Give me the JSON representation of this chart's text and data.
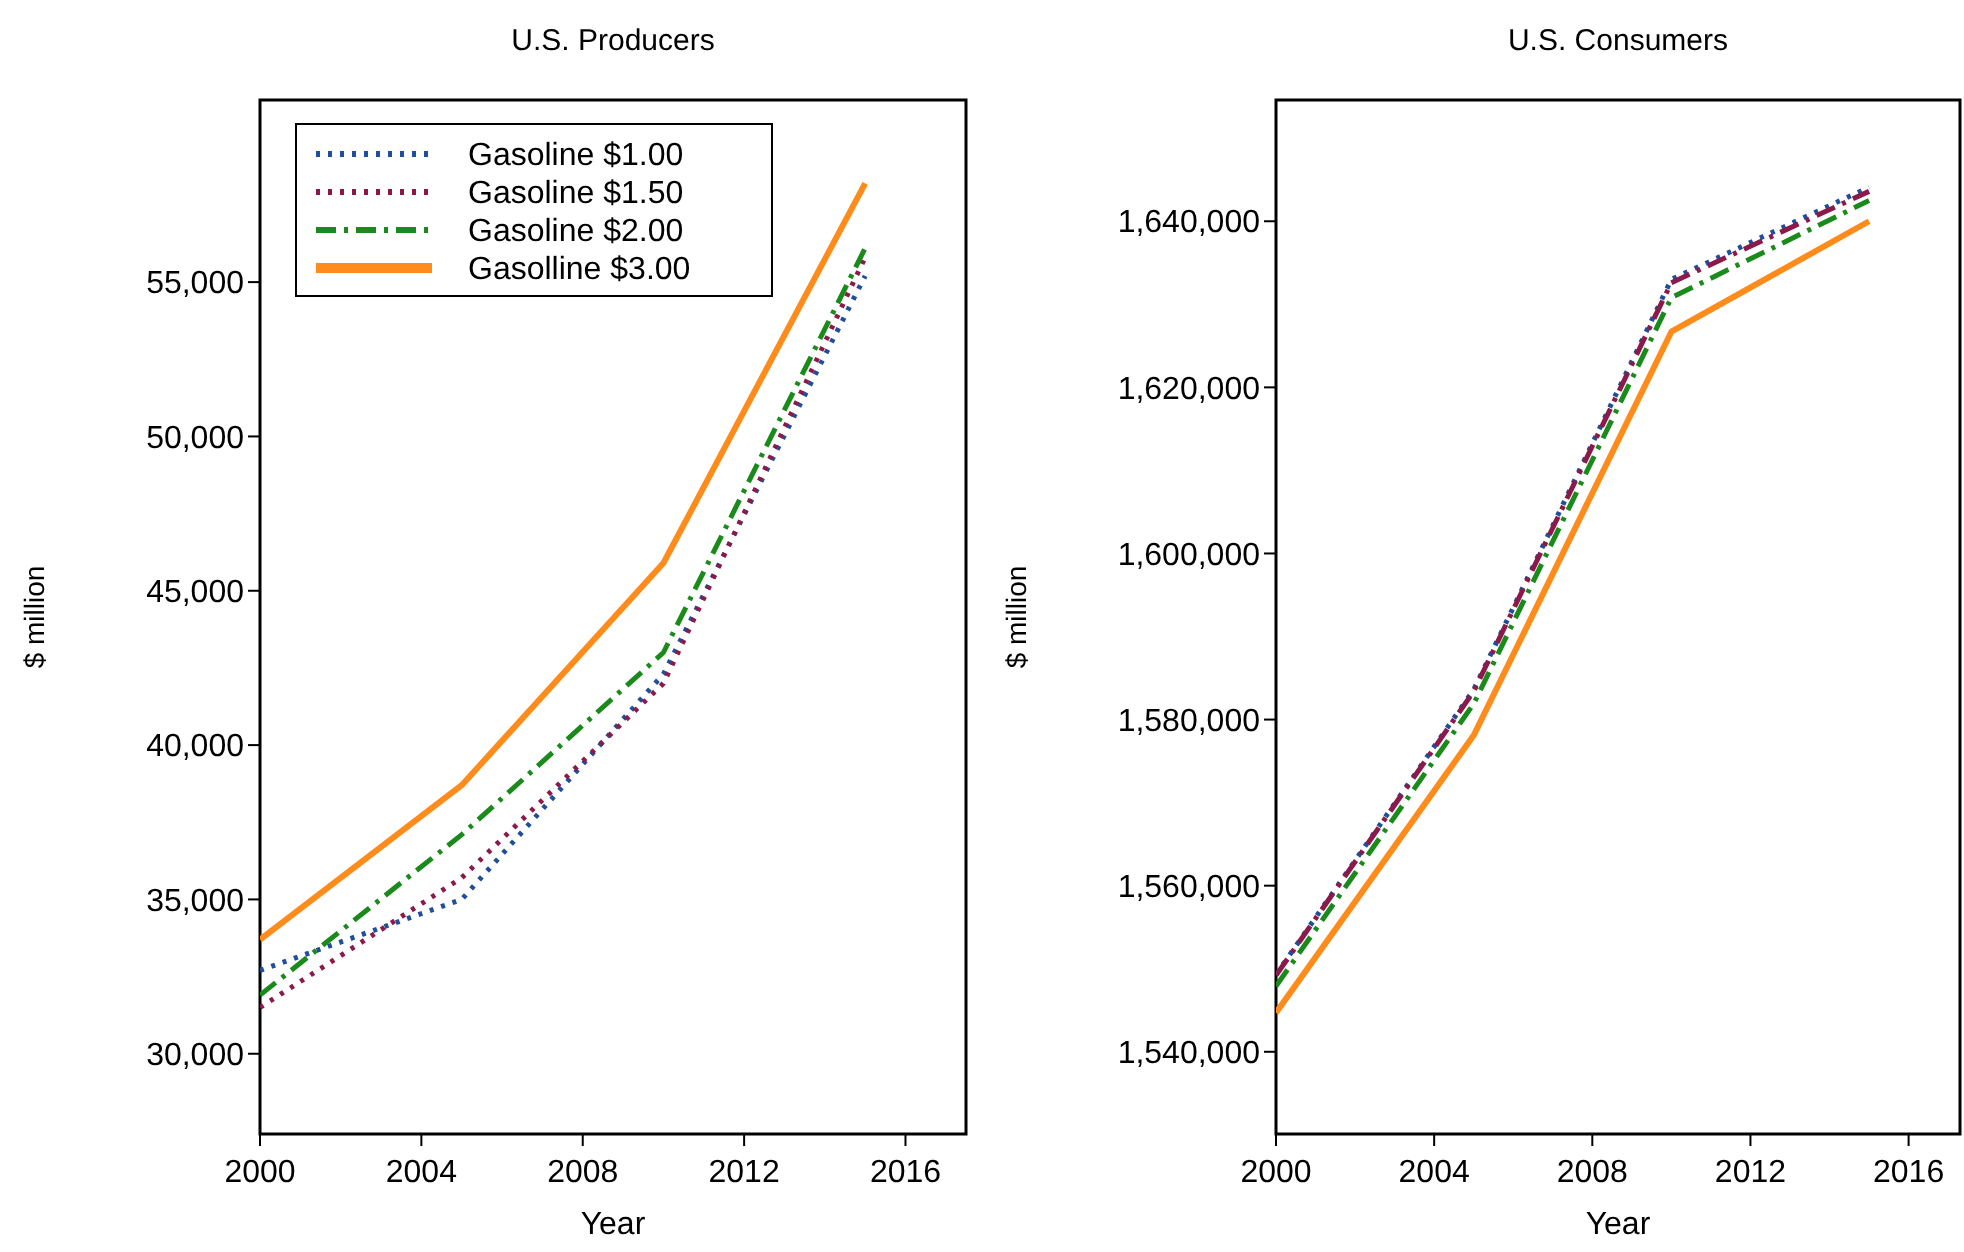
{
  "chart_data": [
    {
      "type": "line",
      "title": "U.S. Producers",
      "xlabel": "Year",
      "ylabel": "$ million",
      "x": [
        2000,
        2005,
        2010,
        2015
      ],
      "xlim": [
        2000,
        2017.5
      ],
      "xticks": [
        2000,
        2004,
        2008,
        2012,
        2016
      ],
      "ylim": [
        27400,
        60900
      ],
      "yticks": [
        {
          "value": 30000,
          "label": "30,000"
        },
        {
          "value": 35000,
          "label": "35,000"
        },
        {
          "value": 40000,
          "label": "40,000"
        },
        {
          "value": 45000,
          "label": "45,000"
        },
        {
          "value": 50000,
          "label": "50,000"
        },
        {
          "value": 55000,
          "label": "55,000"
        }
      ],
      "legend": "top left",
      "series": [
        {
          "name": "Gasoline $1.00",
          "color": "#1f4e9a",
          "line_style": "dotted",
          "values": [
            32700,
            35000,
            42300,
            55200
          ]
        },
        {
          "name": "Gasoline $1.50",
          "color": "#8b1a4a",
          "line_style": "dotted",
          "values": [
            31500,
            35700,
            42000,
            55800
          ]
        },
        {
          "name": "Gasoline $2.00",
          "color": "#1a8a1a",
          "line_style": "dashed",
          "values": [
            31900,
            37100,
            43000,
            56100
          ]
        },
        {
          "name": "Gasolline $3.00",
          "color": "#ff8c1a",
          "line_style": "solid",
          "values": [
            33700,
            38700,
            45900,
            58200
          ]
        }
      ]
    },
    {
      "type": "line",
      "title": "U.S. Consumers",
      "xlabel": "Year",
      "ylabel": "$ million",
      "x": [
        2000,
        2005,
        2010,
        2015
      ],
      "xlim": [
        2000,
        2017.3
      ],
      "xticks": [
        2000,
        2004,
        2008,
        2012,
        2016
      ],
      "ylim": [
        1530100,
        1654600
      ],
      "yticks": [
        {
          "value": 1540000,
          "label": "1,540,000"
        },
        {
          "value": 1560000,
          "label": "1,560,000"
        },
        {
          "value": 1580000,
          "label": "1,580,000"
        },
        {
          "value": 1600000,
          "label": "1,600,000"
        },
        {
          "value": 1620000,
          "label": "1,620,000"
        },
        {
          "value": 1640000,
          "label": "1,640,000"
        }
      ],
      "series": [
        {
          "color": "#1f4e9a",
          "line_style": "dotted",
          "values": [
            1549300,
            1583600,
            1633000,
            1644100
          ]
        },
        {
          "color": "#8b1a4a",
          "line_style": "dashed",
          "values": [
            1549200,
            1583400,
            1632600,
            1643600
          ]
        },
        {
          "color": "#1a8a1a",
          "line_style": "dashed",
          "values": [
            1547900,
            1581900,
            1630800,
            1642500
          ]
        },
        {
          "color": "#ff8c1a",
          "line_style": "solid",
          "values": [
            1544700,
            1578100,
            1626700,
            1640000
          ]
        }
      ]
    }
  ]
}
